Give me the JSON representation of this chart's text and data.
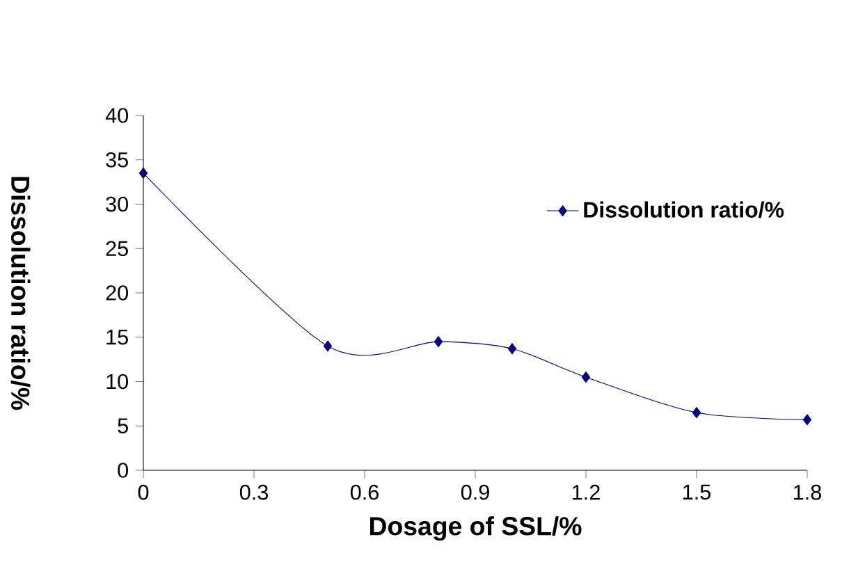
{
  "chart_data": {
    "type": "line",
    "xlabel": "Dosage of SSL/%",
    "ylabel": "Dissolution ratio/%",
    "x": [
      0,
      0.5,
      0.8,
      1.0,
      1.2,
      1.5,
      1.8
    ],
    "series": [
      {
        "name": "Dissolution ratio/%",
        "color": "#000080",
        "values": [
          33.5,
          14,
          14.5,
          13.7,
          10.5,
          6.5,
          5.7
        ]
      }
    ],
    "xlim": [
      0,
      1.8
    ],
    "xticks": [
      0,
      0.3,
      0.6,
      0.9,
      1.2,
      1.5,
      1.8
    ],
    "ylim": [
      0,
      40
    ],
    "yticks": [
      0,
      5,
      10,
      15,
      20,
      25,
      30,
      35,
      40
    ],
    "marker": "diamond",
    "line_style": "solid",
    "legend": "top right",
    "grid": false
  }
}
